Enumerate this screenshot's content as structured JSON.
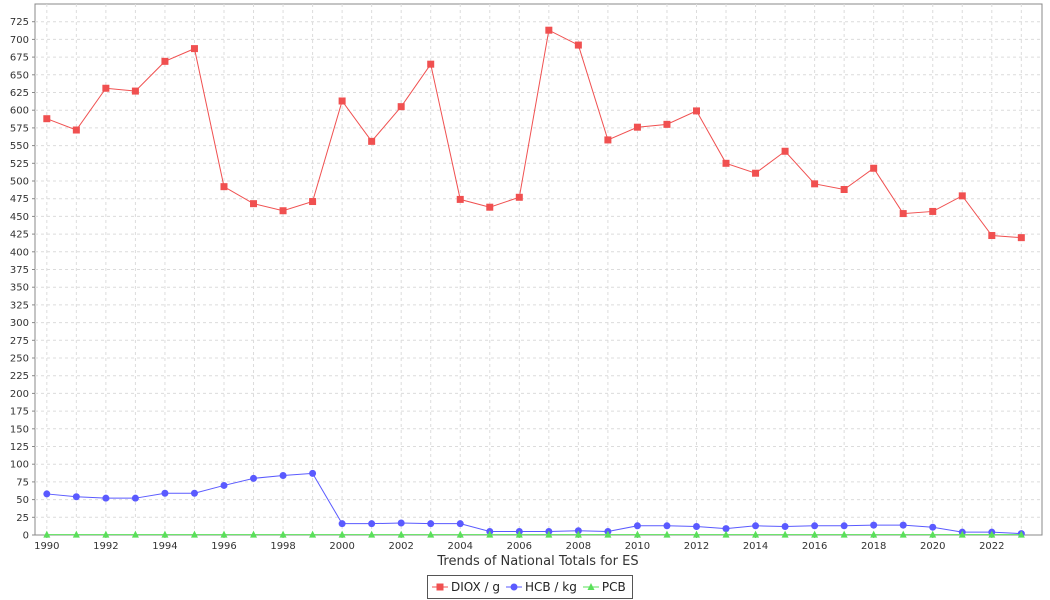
{
  "chart_data": {
    "type": "line",
    "xlabel": "Trends of National Totals for ES",
    "ylabel": "",
    "xlim": [
      1989.6,
      2023.7
    ],
    "ylim": [
      0,
      750
    ],
    "y_ticks": [
      0,
      25,
      50,
      75,
      100,
      125,
      150,
      175,
      200,
      225,
      250,
      275,
      300,
      325,
      350,
      375,
      400,
      425,
      450,
      475,
      500,
      525,
      550,
      575,
      600,
      625,
      650,
      675,
      700,
      725
    ],
    "x_ticks": [
      1990,
      1992,
      1994,
      1996,
      1998,
      2000,
      2002,
      2004,
      2006,
      2008,
      2010,
      2012,
      2014,
      2016,
      2018,
      2020,
      2022
    ],
    "grid": true,
    "legend_position": "bottom",
    "x": [
      1990,
      1991,
      1992,
      1993,
      1994,
      1995,
      1996,
      1997,
      1998,
      1999,
      2000,
      2001,
      2002,
      2003,
      2004,
      2005,
      2006,
      2007,
      2008,
      2009,
      2010,
      2011,
      2012,
      2013,
      2014,
      2015,
      2016,
      2017,
      2018,
      2019,
      2020,
      2021,
      2022,
      2023
    ],
    "series": [
      {
        "name": "DIOX / g",
        "color": "#f05050",
        "marker": "square",
        "values": [
          588,
          572,
          631,
          627,
          669,
          687,
          492,
          468,
          458,
          471,
          613,
          556,
          605,
          665,
          474,
          463,
          477,
          713,
          692,
          558,
          576,
          580,
          599,
          525,
          511,
          542,
          496,
          488,
          518,
          454,
          457,
          479,
          423,
          420
        ]
      },
      {
        "name": "HCB / kg",
        "color": "#5a5aff",
        "marker": "circle",
        "values": [
          58,
          54,
          52,
          52,
          59,
          59,
          70,
          80,
          84,
          87,
          16,
          16,
          17,
          16,
          16,
          5,
          5,
          5,
          6,
          5,
          13,
          13,
          12,
          9,
          13,
          12,
          13,
          13,
          14,
          14,
          11,
          4,
          4,
          2
        ]
      },
      {
        "name": "PCB",
        "color": "#5ae05a",
        "marker": "triangle",
        "values": [
          0.5,
          0.5,
          0.5,
          0.5,
          0.5,
          0.5,
          0.5,
          0.5,
          0.5,
          0.5,
          0.5,
          0.5,
          0.5,
          0.5,
          0.5,
          0.5,
          0.5,
          0.5,
          0.5,
          0.5,
          0.5,
          0.5,
          0.5,
          0.5,
          0.5,
          0.5,
          0.5,
          0.5,
          0.5,
          0.5,
          0.5,
          0.5,
          0.5,
          0.5
        ]
      }
    ]
  }
}
